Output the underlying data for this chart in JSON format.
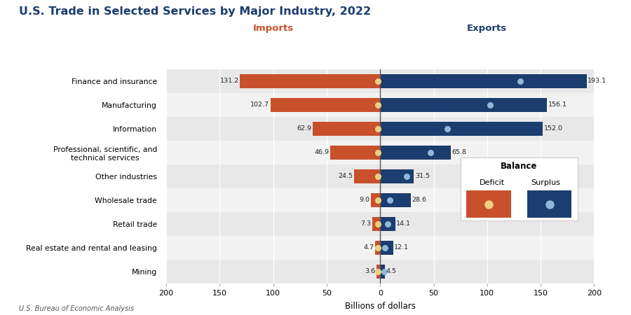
{
  "title": "U.S. Trade in Selected Services by Major Industry, 2022",
  "subtitle_imports": "Imports",
  "subtitle_exports": "Exports",
  "xlabel": "Billions of dollars",
  "footnote": "U.S. Bureau of Economic Analysis",
  "categories": [
    "Finance and insurance",
    "Manufacturing",
    "Information",
    "Professional, scientific, and\ntechnical services",
    "Other industries",
    "Wholesale trade",
    "Retail trade",
    "Real estate and rental and leasing",
    "Mining"
  ],
  "imports": [
    131.2,
    102.7,
    62.9,
    46.9,
    24.5,
    9.0,
    7.3,
    4.7,
    3.6
  ],
  "exports": [
    193.1,
    156.1,
    152.0,
    65.8,
    31.5,
    28.6,
    14.1,
    12.1,
    4.5
  ],
  "import_color": "#C8502A",
  "export_color": "#1B3D6F",
  "dot_color_import": "#F0D080",
  "dot_color_export": "#90B8D8",
  "title_color": "#1B3D6F",
  "imports_label_color": "#C8502A",
  "exports_label_color": "#1B3D6F",
  "bg_row0": "#E8E8E8",
  "bg_row1": "#F2F2F2",
  "legend_title": "Balance",
  "legend_deficit": "Deficit",
  "legend_surplus": "Surplus"
}
